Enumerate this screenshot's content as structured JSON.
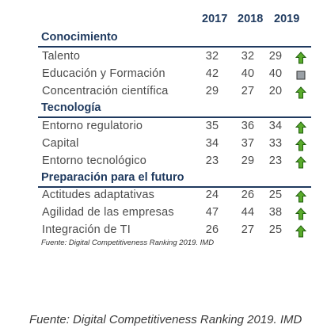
{
  "years": [
    "2017",
    "2018",
    "2019"
  ],
  "sections": [
    {
      "title": "Conocimiento",
      "rows": [
        {
          "label": "Talento",
          "values": [
            "32",
            "32",
            "29"
          ],
          "indicator": "green-up-arrow-icon"
        },
        {
          "label": "Educación y Formación",
          "values": [
            "42",
            "40",
            "40"
          ],
          "indicator": "gray-square-icon"
        },
        {
          "label": "Concentración científica",
          "values": [
            "29",
            "27",
            "20"
          ],
          "indicator": "green-up-arrow-icon"
        }
      ]
    },
    {
      "title": "Tecnología",
      "rows": [
        {
          "label": "Entorno regulatorio",
          "values": [
            "35",
            "36",
            "34"
          ],
          "indicator": "green-up-arrow-icon"
        },
        {
          "label": "Capital",
          "values": [
            "34",
            "37",
            "33"
          ],
          "indicator": "green-up-arrow-icon"
        },
        {
          "label": "Entorno tecnológico",
          "values": [
            "23",
            "29",
            "23"
          ],
          "indicator": "green-up-arrow-icon"
        }
      ]
    },
    {
      "title": "Preparación para el futuro",
      "rows": [
        {
          "label": "Actitudes adaptativas",
          "values": [
            "24",
            "26",
            "25"
          ],
          "indicator": "green-up-arrow-icon"
        },
        {
          "label": "Agilidad de las empresas",
          "values": [
            "47",
            "44",
            "38"
          ],
          "indicator": "green-up-arrow-icon"
        },
        {
          "label": "Integración de TI",
          "values": [
            "26",
            "27",
            "25"
          ],
          "indicator": "green-up-arrow-icon"
        }
      ]
    }
  ],
  "source_small": "Fuente: Digital Competitiveness Ranking 2019. IMD",
  "source_large": "Fuente: Digital Competitiveness Ranking 2019. IMD",
  "colors": {
    "heading": "#1f3a5f",
    "arrow_fill": "#5aab2c",
    "arrow_stroke": "#1e5c0c",
    "square_fill": "#9aa0a6"
  }
}
